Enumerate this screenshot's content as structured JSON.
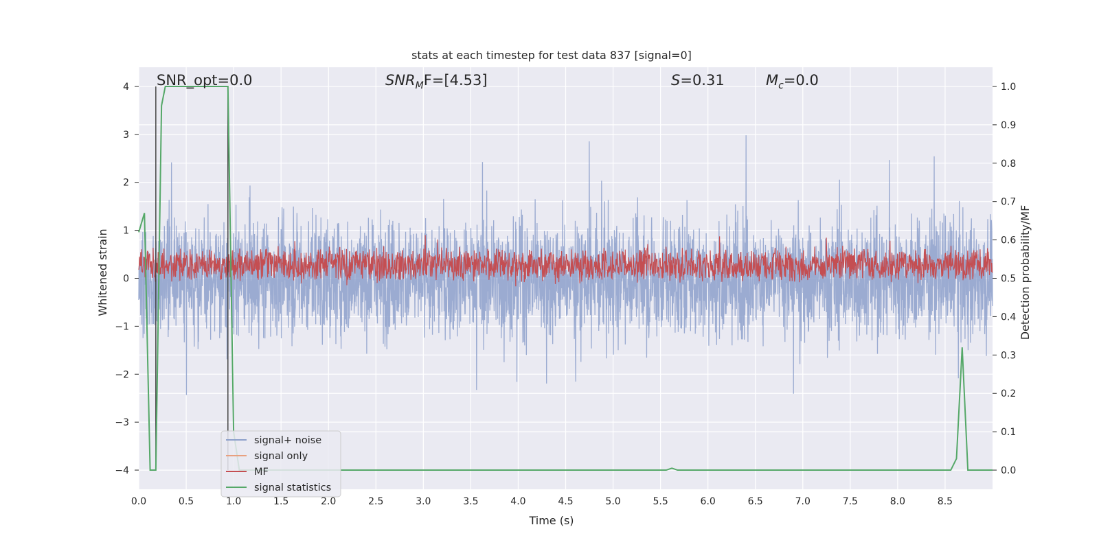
{
  "chart_data": {
    "type": "line",
    "title": "stats at each timestep for test data 837 [signal=0]",
    "xlabel": "Time (s)",
    "ylabel": "Whitened strain",
    "ylabel_right": "Detection probability/MF",
    "xlim": [
      0.0,
      9.0
    ],
    "ylim": [
      -4.4,
      4.4
    ],
    "ylim_right": [
      -0.05,
      1.05
    ],
    "x_ticks": [
      "0.0",
      "0.5",
      "1.0",
      "1.5",
      "2.0",
      "2.5",
      "3.0",
      "3.5",
      "4.0",
      "4.5",
      "5.0",
      "5.5",
      "6.0",
      "6.5",
      "7.0",
      "7.5",
      "8.0",
      "8.5"
    ],
    "y_ticks": [
      "−4",
      "−3",
      "−2",
      "−1",
      "0",
      "1",
      "2",
      "3",
      "4"
    ],
    "y_right_ticks": [
      "0.0",
      "0.1",
      "0.2",
      "0.3",
      "0.4",
      "0.5",
      "0.6",
      "0.7",
      "0.8",
      "0.9",
      "1.0"
    ],
    "grid": true,
    "legend_position": "lower-left",
    "annotations": {
      "snr_opt": "SNR_opt=0.0",
      "snr_mf_sym": "SNR",
      "snr_mf_sub": "M",
      "snr_mf_rest": "F=[4.53]",
      "s_sym": "S",
      "s_rest": "=0.31",
      "mc_sym": "M",
      "mc_sub": "c",
      "mc_rest": "=0.0"
    },
    "vertical_markers": [
      0.18,
      0.94
    ],
    "series": [
      {
        "name": "signal+ noise",
        "color": "#8da0cb",
        "axis": "left",
        "style": "noise",
        "sigma": 0.85,
        "x_range": [
          0.0,
          9.0
        ]
      },
      {
        "name": "signal only",
        "color": "#e8a07f",
        "axis": "left",
        "values": []
      },
      {
        "name": "MF",
        "color": "#c44e52",
        "axis": "right",
        "style": "noise",
        "mean": 0.535,
        "amp": 0.035,
        "x_range": [
          0.0,
          9.0
        ]
      },
      {
        "name": "signal statistics",
        "color": "#55a868",
        "axis": "right",
        "x": [
          0.0,
          0.06,
          0.12,
          0.18,
          0.24,
          0.28,
          0.9,
          0.94,
          1.0,
          1.06,
          1.12,
          1.18,
          1.24,
          5.5,
          5.56,
          5.62,
          5.68,
          8.5,
          8.56,
          8.62,
          8.68,
          8.74,
          8.8,
          9.0
        ],
        "y": [
          0.62,
          0.67,
          0.0,
          0.0,
          0.95,
          1.0,
          1.0,
          1.0,
          0.1,
          0.0,
          0.0,
          0.0,
          0.0,
          0.0,
          0.0,
          0.005,
          0.0,
          0.0,
          0.0,
          0.03,
          0.32,
          0.0,
          0.0,
          0.0
        ]
      }
    ]
  },
  "colors": {
    "background": "#eaeaf2",
    "grid": "#ffffff",
    "marker": "#3a3a3a"
  }
}
